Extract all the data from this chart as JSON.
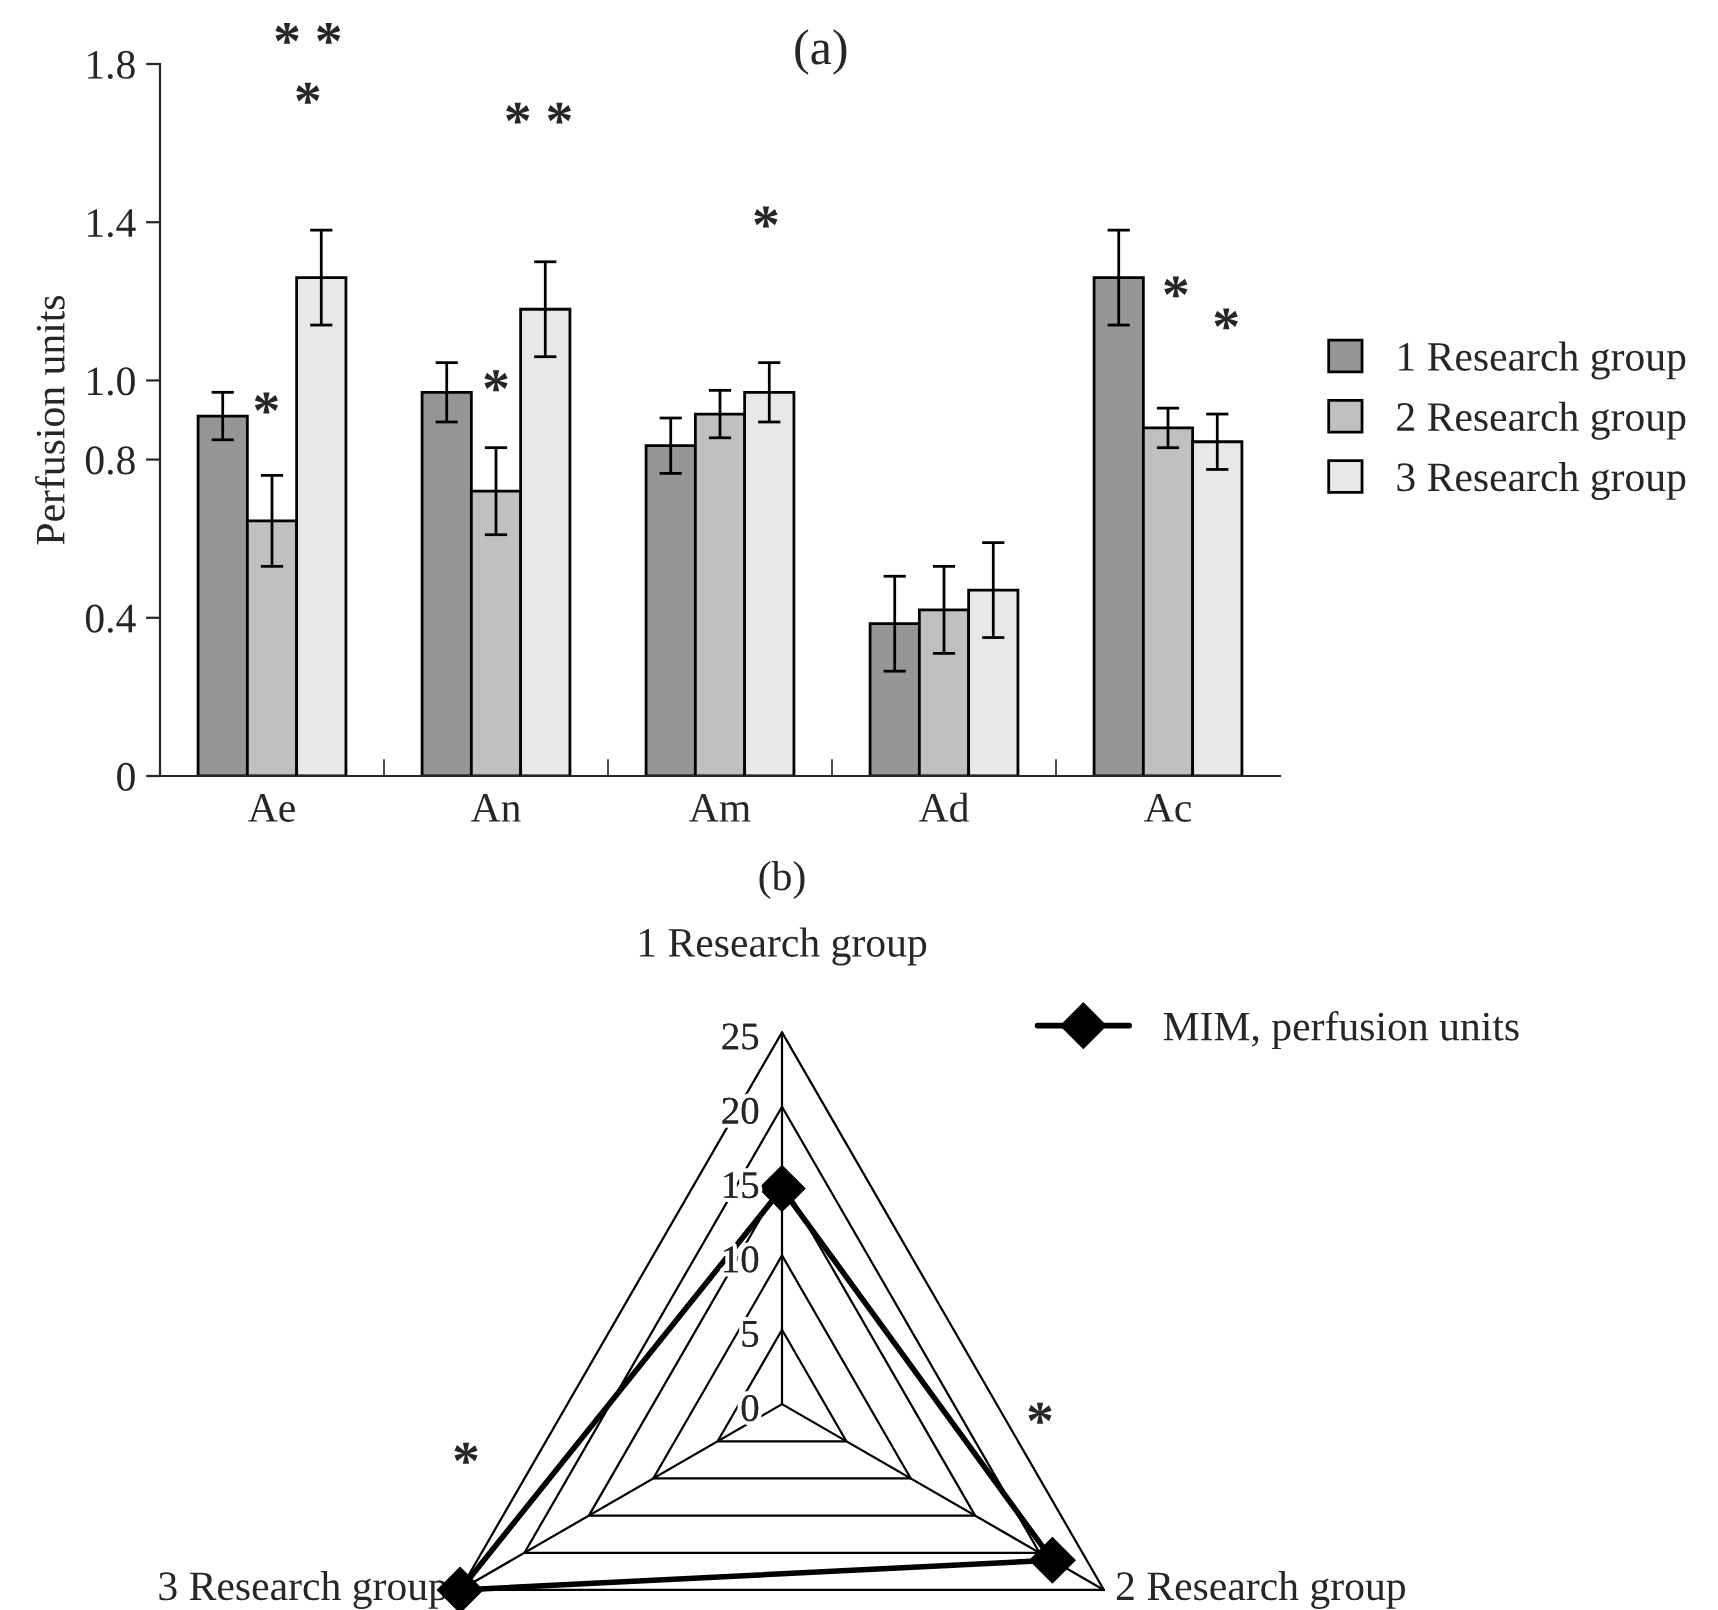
{
  "chart_data": [
    {
      "type": "bar",
      "title": "(a)",
      "ylabel": "Perfusion units",
      "categories": [
        "Ae",
        "An",
        "Am",
        "Ad",
        "Ac"
      ],
      "series": [
        {
          "name": "1 Research group",
          "color": "#969696",
          "values": [
            0.91,
            0.97,
            0.835,
            0.385,
            1.26
          ],
          "errors": [
            0.06,
            0.075,
            0.07,
            0.12,
            0.12
          ]
        },
        {
          "name": "2 Research group",
          "color": "#c0c0c0",
          "values": [
            0.645,
            0.72,
            0.915,
            0.42,
            0.88
          ],
          "errors": [
            0.115,
            0.11,
            0.06,
            0.11,
            0.05
          ]
        },
        {
          "name": "3 Research group",
          "color": "#e8e8e8",
          "values": [
            1.26,
            1.18,
            0.97,
            0.47,
            0.845
          ],
          "errors": [
            0.12,
            0.12,
            0.075,
            0.12,
            0.07
          ]
        }
      ],
      "ylim": [
        0,
        1.8
      ],
      "yticks": [
        0,
        0.4,
        0.8,
        {
          "value": 1.0,
          "label": "1.0"
        },
        1.4,
        1.8
      ],
      "legend": "right",
      "annotations": [
        "* *",
        "*",
        "*",
        "* *",
        "*",
        "*",
        "*",
        "*"
      ]
    },
    {
      "type": "radar",
      "title": "(b)",
      "categories": [
        "1 Research group",
        "2 Research group",
        "3 Research group"
      ],
      "series": [
        {
          "name": "MIM, perfusion units",
          "color": "#000000",
          "values": [
            14.5,
            21,
            25
          ]
        }
      ],
      "ylim": [
        0,
        25
      ],
      "yticks": [
        0,
        5,
        10,
        15,
        20,
        25
      ],
      "marker": "diamond",
      "legend": "right",
      "annotations": [
        "*",
        "*"
      ]
    }
  ]
}
